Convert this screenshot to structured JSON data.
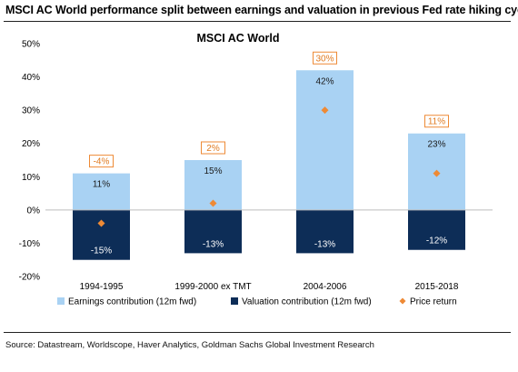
{
  "page": {
    "heading": "MSCI AC World performance split between earnings and valuation in previous Fed rate hiking cycles",
    "source": "Source: Datastream, Worldscope, Haver Analytics, Goldman Sachs Global Investment Research"
  },
  "colors": {
    "earnings": "#a9d2f3",
    "valuation": "#0d2d57",
    "price": "#ee8a35",
    "label_border": "#ee8a35",
    "label_text": "#e07a20"
  },
  "chart_data": {
    "type": "bar",
    "title": "MSCI AC World",
    "categories": [
      "1994-1995",
      "1999-2000 ex TMT",
      "2004-2006",
      "2015-2018"
    ],
    "series": [
      {
        "name": "Earnings contribution (12m fwd)",
        "kind": "bar",
        "values": [
          11,
          15,
          42,
          23
        ],
        "labels": [
          "11%",
          "15%",
          "42%",
          "23%"
        ]
      },
      {
        "name": "Valuation contribution (12m fwd)",
        "kind": "bar",
        "values": [
          -15,
          -13,
          -13,
          -12
        ],
        "labels": [
          "-15%",
          "-13%",
          "-13%",
          "-12%"
        ]
      },
      {
        "name": "Price return",
        "kind": "marker",
        "values": [
          -4,
          2,
          30,
          11
        ],
        "labels": [
          "-4%",
          "2%",
          "30%",
          "11%"
        ]
      }
    ],
    "ylim": [
      -20,
      50
    ],
    "yticks": [
      -20,
      -10,
      0,
      10,
      20,
      30,
      40,
      50
    ],
    "ytick_labels": [
      "-20%",
      "-10%",
      "0%",
      "10%",
      "20%",
      "30%",
      "40%",
      "50%"
    ],
    "grid": false,
    "legend_position": "bottom",
    "xlabel": "",
    "ylabel": ""
  }
}
